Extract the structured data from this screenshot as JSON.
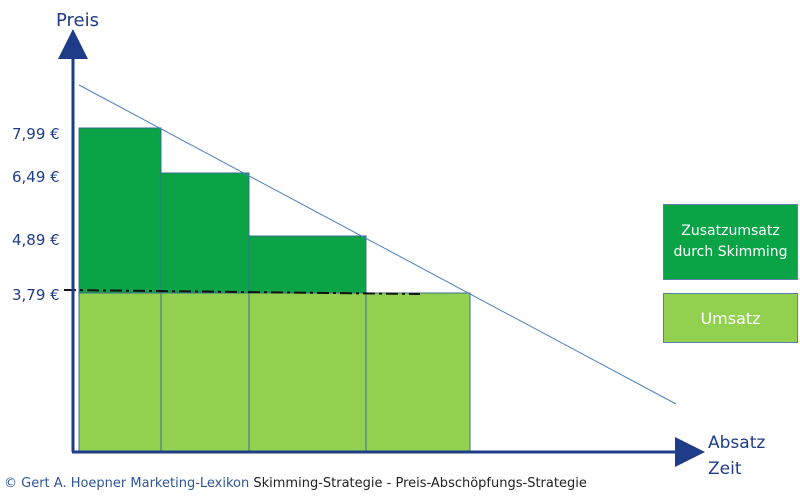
{
  "chart_data": {
    "type": "diagram",
    "y_axis_label": "Preis",
    "x_axis_label_line1": "Absatz",
    "x_axis_label_line2": "Zeit",
    "price_labels": [
      "7,99 €",
      "6,49 €",
      "4,89 €",
      "3,79 €"
    ],
    "prices": [
      7.99,
      6.49,
      4.89,
      3.79
    ],
    "colors": {
      "additional_revenue": "#0aa447",
      "revenue": "#92d050",
      "axis": "#1f3c88",
      "demand_line": "#4a7fc1",
      "price_text": "#1f3c88"
    }
  },
  "legend": {
    "additional_revenue": "Zusatzumsatz durch Skimming",
    "revenue": "Umsatz"
  },
  "footer": {
    "copyright": "© Gert A. Hoepner Marketing-Lexikon",
    "title": "Skimming-Strategie - Preis-Abschöpfungs-Strategie"
  }
}
